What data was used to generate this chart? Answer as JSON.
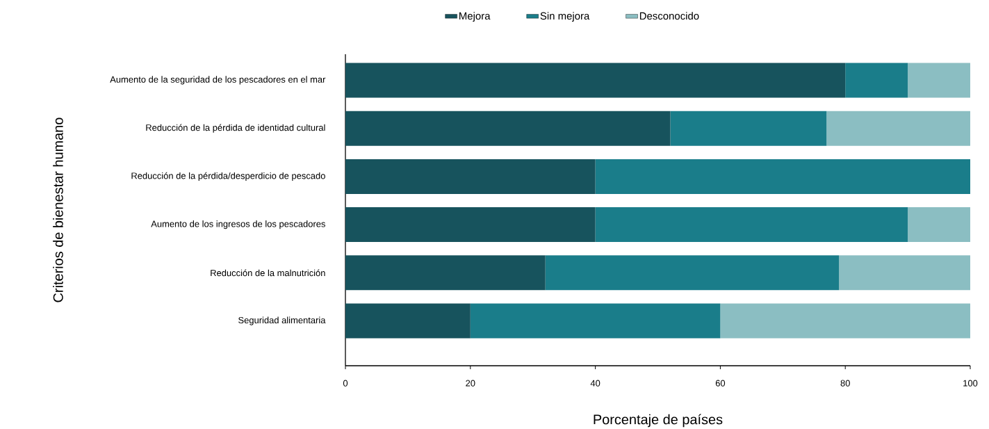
{
  "chart_data": {
    "type": "bar",
    "orientation": "horizontal",
    "stacked": true,
    "xlabel": "Porcentaje de países",
    "ylabel": "Criterios de bienestar humano",
    "categories": [
      "Aumento de la seguridad de los pescadores en el mar",
      "Reducción de la pérdida de identidad cultural",
      "Reducción de la pérdida/desperdicio de pescado",
      "Aumento de los ingresos de los pescadores",
      "Reducción de la malnutrición",
      "Seguridad alimentaria"
    ],
    "series": [
      {
        "name": "Mejora",
        "color": "#17535d",
        "values": [
          80,
          52,
          40,
          40,
          32,
          20
        ]
      },
      {
        "name": "Sin mejora",
        "color": "#1a7d8a",
        "values": [
          10,
          25,
          60,
          50,
          47,
          40
        ]
      },
      {
        "name": "Desconocido",
        "color": "#8bbec2",
        "values": [
          10,
          23,
          0,
          10,
          21,
          40
        ]
      }
    ],
    "xlim": [
      0,
      100
    ],
    "xticks": [
      0,
      20,
      40,
      60,
      80,
      100
    ],
    "legend": "top",
    "grid": false
  }
}
